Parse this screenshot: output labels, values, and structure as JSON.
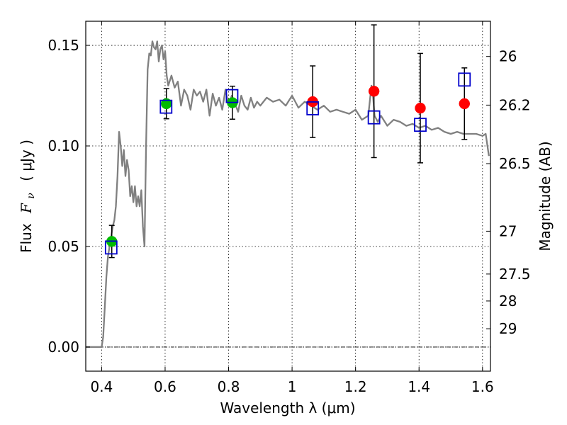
{
  "chart_data": {
    "type": "scatter",
    "title": "",
    "xlabel": "Wavelength  λ (μm)",
    "ylabel_text": "Flux",
    "ylabel_symbol": "F",
    "ylabel_sub": "ν",
    "ylabel_units": "( μJy )",
    "y2label": "Magnitude (AB)",
    "xlim": [
      0.35,
      1.625
    ],
    "ylim": [
      -0.012,
      0.162
    ],
    "grid": true,
    "xticks": [
      0.4,
      0.6,
      0.8,
      1.0,
      1.2,
      1.4,
      1.6
    ],
    "xtick_labels": [
      "0.4",
      "0.6",
      "0.8",
      "1",
      "1.2",
      "1.4",
      "1.6"
    ],
    "yticks": [
      0.0,
      0.05,
      0.1,
      0.15
    ],
    "ytick_labels": [
      "0.00",
      "0.05",
      "0.10",
      "0.15"
    ],
    "y2ticks": [
      {
        "label": "26",
        "flux": 0.1445
      },
      {
        "label": "26.2",
        "flux": 0.1203
      },
      {
        "label": "26.5",
        "flux": 0.0912
      },
      {
        "label": "27",
        "flux": 0.0576
      },
      {
        "label": "27.5",
        "flux": 0.0363
      },
      {
        "label": "28",
        "flux": 0.0229
      },
      {
        "label": "29",
        "flux": 0.0091
      }
    ],
    "zero_line": 0.0,
    "series": [
      {
        "style": "line",
        "color": "#808080",
        "x": [
          0.35,
          0.39,
          0.4,
          0.405,
          0.41,
          0.415,
          0.42,
          0.425,
          0.43,
          0.435,
          0.44,
          0.445,
          0.45,
          0.455,
          0.46,
          0.465,
          0.47,
          0.475,
          0.48,
          0.485,
          0.49,
          0.495,
          0.5,
          0.505,
          0.51,
          0.515,
          0.52,
          0.525,
          0.53,
          0.535,
          0.54,
          0.545,
          0.55,
          0.555,
          0.56,
          0.565,
          0.57,
          0.575,
          0.58,
          0.585,
          0.59,
          0.595,
          0.6,
          0.605,
          0.61,
          0.62,
          0.63,
          0.64,
          0.65,
          0.66,
          0.67,
          0.68,
          0.69,
          0.7,
          0.71,
          0.72,
          0.73,
          0.74,
          0.75,
          0.76,
          0.77,
          0.78,
          0.79,
          0.8,
          0.81,
          0.82,
          0.83,
          0.84,
          0.85,
          0.86,
          0.87,
          0.88,
          0.89,
          0.9,
          0.92,
          0.94,
          0.96,
          0.98,
          1.0,
          1.02,
          1.04,
          1.06,
          1.08,
          1.1,
          1.12,
          1.14,
          1.16,
          1.18,
          1.2,
          1.22,
          1.24,
          1.25,
          1.255,
          1.26,
          1.27,
          1.28,
          1.3,
          1.32,
          1.34,
          1.36,
          1.38,
          1.4,
          1.42,
          1.44,
          1.46,
          1.48,
          1.5,
          1.52,
          1.54,
          1.56,
          1.58,
          1.6,
          1.61,
          1.62
        ],
        "y": [
          0.0,
          0.0,
          0.0,
          0.005,
          0.02,
          0.035,
          0.045,
          0.05,
          0.055,
          0.06,
          0.063,
          0.07,
          0.085,
          0.107,
          0.1,
          0.09,
          0.098,
          0.085,
          0.093,
          0.088,
          0.075,
          0.08,
          0.072,
          0.08,
          0.07,
          0.075,
          0.07,
          0.078,
          0.06,
          0.05,
          0.1,
          0.138,
          0.146,
          0.145,
          0.152,
          0.149,
          0.148,
          0.152,
          0.142,
          0.148,
          0.15,
          0.143,
          0.147,
          0.135,
          0.13,
          0.135,
          0.129,
          0.132,
          0.12,
          0.128,
          0.125,
          0.118,
          0.128,
          0.125,
          0.127,
          0.122,
          0.128,
          0.115,
          0.126,
          0.12,
          0.124,
          0.118,
          0.128,
          0.12,
          0.125,
          0.121,
          0.117,
          0.125,
          0.12,
          0.118,
          0.124,
          0.119,
          0.122,
          0.12,
          0.124,
          0.122,
          0.123,
          0.12,
          0.125,
          0.119,
          0.122,
          0.12,
          0.118,
          0.12,
          0.117,
          0.118,
          0.117,
          0.116,
          0.118,
          0.113,
          0.115,
          0.13,
          0.125,
          0.115,
          0.112,
          0.115,
          0.11,
          0.113,
          0.112,
          0.11,
          0.111,
          0.109,
          0.11,
          0.108,
          0.109,
          0.107,
          0.106,
          0.107,
          0.106,
          0.106,
          0.106,
          0.105,
          0.106,
          0.095
        ]
      },
      {
        "style": "markers",
        "marker": "circle",
        "color": "#00bb00",
        "x": [
          0.432,
          0.604,
          0.812
        ],
        "y": [
          0.0525,
          0.121,
          0.1215
        ],
        "yerr": [
          0.008,
          0.0075,
          0.0082
        ]
      },
      {
        "style": "markers",
        "marker": "circle",
        "color": "#ff0000",
        "x": [
          1.065,
          1.258,
          1.404,
          1.543
        ],
        "y": [
          0.122,
          0.1272,
          0.1188,
          0.121
        ],
        "yerr": [
          0.0178,
          0.033,
          0.0272,
          0.0178
        ]
      },
      {
        "style": "markers",
        "marker": "open-square",
        "color": "#0000cc",
        "x": [
          0.43,
          0.603,
          0.811,
          1.065,
          1.258,
          1.404,
          1.543
        ],
        "y": [
          0.0495,
          0.1195,
          0.1248,
          0.1187,
          0.1142,
          0.1105,
          0.133
        ]
      }
    ]
  }
}
